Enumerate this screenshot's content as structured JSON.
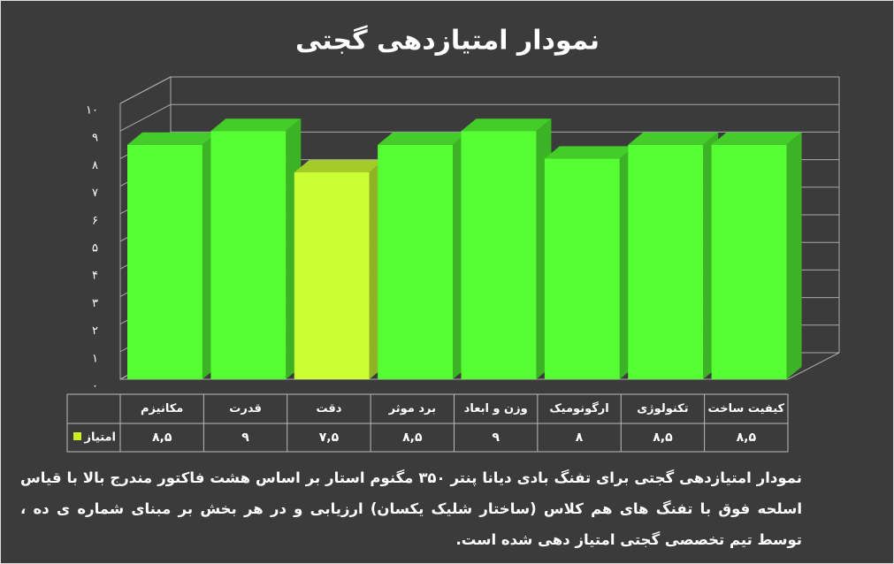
{
  "chart_data": {
    "type": "bar3d",
    "title": "نمودار امتیازدهی گجتی",
    "categories": [
      "مکانیزم",
      "قدرت",
      "دقت",
      "برد موثر",
      "وزن و ابعاد",
      "ارگونومیک",
      "تکنولوژی",
      "کیفیت ساخت"
    ],
    "series": [
      {
        "name": "امتیاز",
        "color": "#ccee22",
        "values": [
          8.5,
          9,
          7.5,
          8.5,
          9,
          8,
          8.5,
          8.5
        ],
        "value_labels": [
          "۸,۵",
          "۹",
          "۷,۵",
          "۸,۵",
          "۹",
          "۸",
          "۸,۵",
          "۸,۵"
        ],
        "colors": [
          "#55ff33",
          "#55ff33",
          "#ccff33",
          "#55ff33",
          "#55ff33",
          "#55ff33",
          "#55ff33",
          "#55ff33"
        ]
      }
    ],
    "ylim": [
      0,
      10
    ],
    "yticks": [
      {
        "value": 0,
        "label": "۰"
      },
      {
        "value": 1,
        "label": "۱"
      },
      {
        "value": 2,
        "label": "۲"
      },
      {
        "value": 3,
        "label": "۳"
      },
      {
        "value": 4,
        "label": "۴"
      },
      {
        "value": 5,
        "label": "۵"
      },
      {
        "value": 6,
        "label": "۶"
      },
      {
        "value": 7,
        "label": "۷"
      },
      {
        "value": 8,
        "label": "۸"
      },
      {
        "value": 9,
        "label": "۹"
      },
      {
        "value": 10,
        "label": "۱۰"
      }
    ],
    "grid": true,
    "caption": "نمودار امتیازدهی گجتی برای تفنگ بادی دیانا پنتر ۳۵۰ مگنوم استار بر اساس هشت فاکتور مندرج بالا با قیاس اسلحه فوق با تفنگ های هم کلاس (ساختار شلیک یکسان) ارزیابی و در هر بخش بر مبنای شماره ی ده ، توسط تیم تخصصی گجتی امتیاز دهی شده است."
  }
}
